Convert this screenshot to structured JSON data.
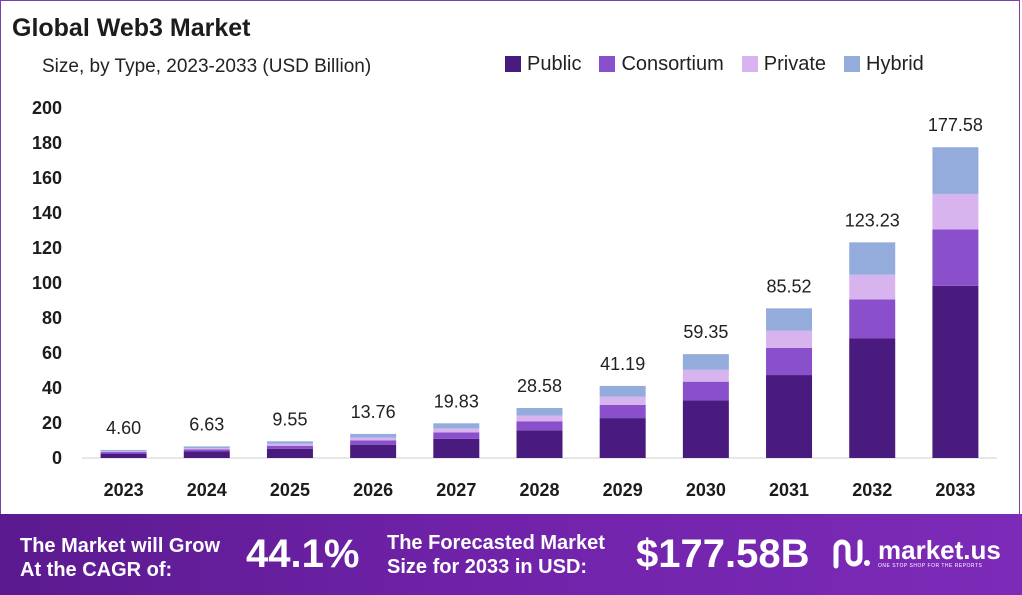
{
  "header": {
    "title": "Global Web3 Market",
    "subtitle": "Size, by Type, 2023-2033 (USD Billion)"
  },
  "legend": [
    {
      "label": "Public",
      "color": "#4a1b7e"
    },
    {
      "label": "Consortium",
      "color": "#8a4fcb"
    },
    {
      "label": "Private",
      "color": "#d8b4ee"
    },
    {
      "label": "Hybrid",
      "color": "#94acdc"
    }
  ],
  "chart_data": {
    "type": "bar",
    "stacked": true,
    "categories": [
      "2023",
      "2024",
      "2025",
      "2026",
      "2027",
      "2028",
      "2029",
      "2030",
      "2031",
      "2032",
      "2033"
    ],
    "series": [
      {
        "name": "Public",
        "color": "#4a1b7e",
        "values": [
          2.5,
          3.7,
          5.3,
          7.6,
          11.0,
          15.8,
          22.8,
          32.9,
          47.4,
          68.3,
          98.4
        ]
      },
      {
        "name": "Consortium",
        "color": "#8a4fcb",
        "values": [
          0.9,
          1.2,
          1.7,
          2.5,
          3.6,
          5.2,
          7.5,
          10.7,
          15.5,
          22.3,
          32.2
        ]
      },
      {
        "name": "Private",
        "color": "#d8b4ee",
        "values": [
          0.5,
          0.7,
          1.1,
          1.6,
          2.3,
          3.3,
          4.7,
          6.8,
          9.8,
          14.1,
          20.3
        ]
      },
      {
        "name": "Hybrid",
        "color": "#94acdc",
        "values": [
          0.7,
          1.03,
          1.45,
          2.06,
          2.93,
          4.28,
          6.19,
          8.95,
          12.82,
          18.53,
          26.68
        ]
      }
    ],
    "totals": [
      "4.60",
      "6.63",
      "9.55",
      "13.76",
      "19.83",
      "28.58",
      "41.19",
      "59.35",
      "85.52",
      "123.23",
      "177.58"
    ],
    "ylim": [
      0,
      200
    ],
    "yticks": [
      0,
      20,
      40,
      60,
      80,
      100,
      120,
      140,
      160,
      180,
      200
    ],
    "grid": false,
    "legend_position": "top-right"
  },
  "footer": {
    "cagr_label_line1": "The Market will Grow",
    "cagr_label_line2": "At the CAGR of:",
    "cagr_value": "44.1%",
    "forecast_label_line1": "The Forecasted Market",
    "forecast_label_line2": "Size for 2033 in USD:",
    "forecast_value": "$177.58B",
    "brand_name": "market.us",
    "brand_tagline": "ONE STOP SHOP FOR THE REPORTS"
  }
}
